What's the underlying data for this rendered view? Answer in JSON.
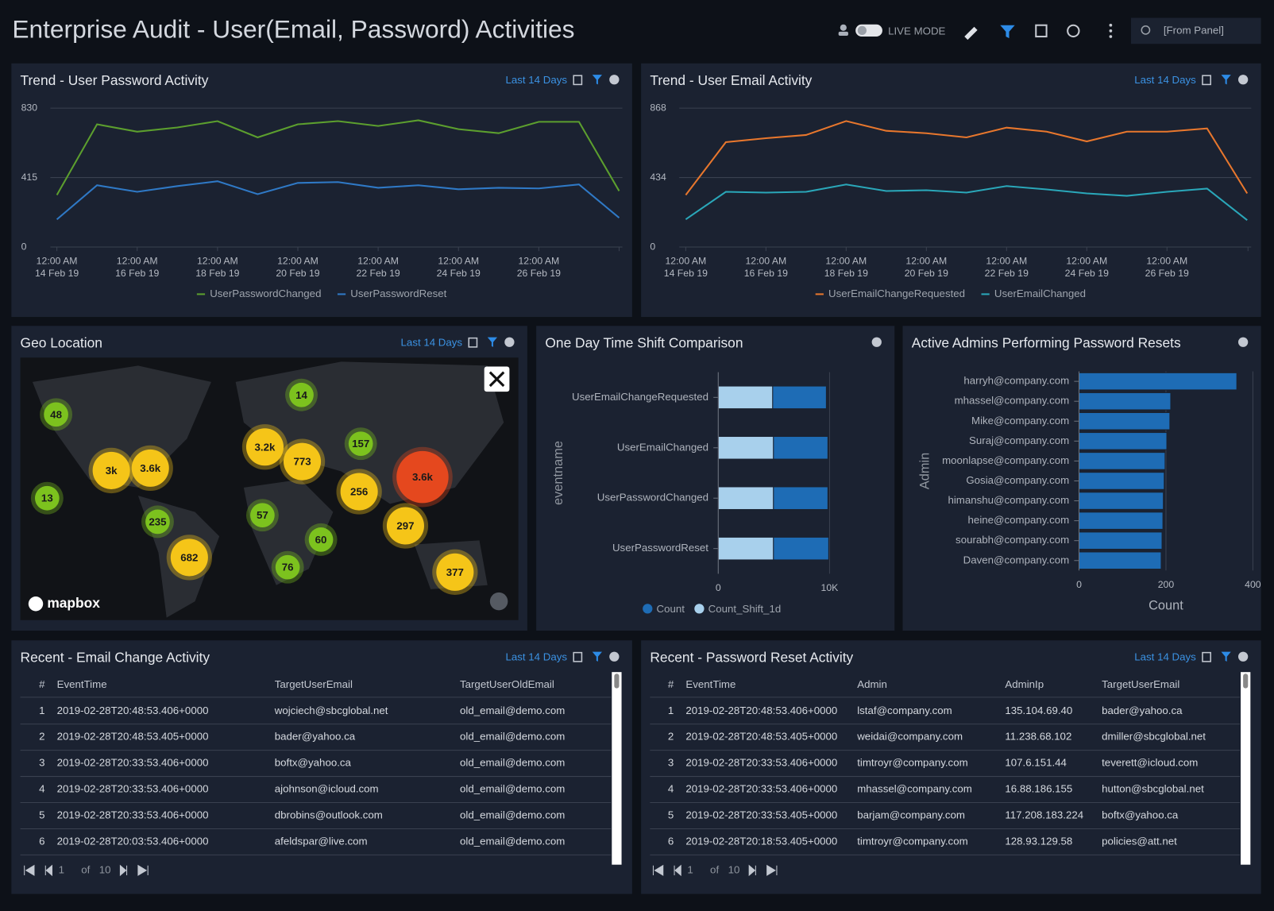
{
  "header": {
    "title": "Enterprise Audit - User(Email, Password) Activities",
    "live_mode": "LIVE MODE",
    "time_range": "[From Panel]"
  },
  "chart_data": [
    {
      "type": "line",
      "title": "Trend - User Password Activity",
      "time_range": "Last 14 Days",
      "x": [
        "14 Feb 19",
        "15 Feb 19",
        "16 Feb 19",
        "17 Feb 19",
        "18 Feb 19",
        "19 Feb 19",
        "20 Feb 19",
        "21 Feb 19",
        "22 Feb 19",
        "23 Feb 19",
        "24 Feb 19",
        "25 Feb 19",
        "26 Feb 19",
        "27 Feb 19",
        "28 Feb 19"
      ],
      "xticks": [
        {
          "value": "14 Feb 19",
          "label": "12:00 AM\n14 Feb 19"
        },
        {
          "value": "16 Feb 19",
          "label": "12:00 AM\n16 Feb 19"
        },
        {
          "value": "18 Feb 19",
          "label": "12:00 AM\n18 Feb 19"
        },
        {
          "value": "20 Feb 19",
          "label": "12:00 AM\n20 Feb 19"
        },
        {
          "value": "22 Feb 19",
          "label": "12:00 AM\n22 Feb 19"
        },
        {
          "value": "24 Feb 19",
          "label": "12:00 AM\n24 Feb 19"
        },
        {
          "value": "26 Feb 19",
          "label": "12:00 AM\n26 Feb 19"
        }
      ],
      "ylim": [
        0,
        830
      ],
      "yticks": [
        0,
        415,
        830
      ],
      "grid": true,
      "series": [
        {
          "name": "UserPasswordChanged",
          "color": "#5c9f2e",
          "values": [
            311,
            733,
            689,
            714,
            752,
            655,
            733,
            752,
            723,
            757,
            704,
            680,
            748,
            748,
            335
          ]
        },
        {
          "name": "UserPasswordReset",
          "color": "#2f79c6",
          "values": [
            165,
            369,
            330,
            364,
            393,
            316,
            383,
            388,
            354,
            369,
            345,
            354,
            350,
            374,
            175
          ]
        }
      ]
    },
    {
      "type": "line",
      "title": "Trend - User Email Activity",
      "time_range": "Last 14 Days",
      "x": [
        "14 Feb 19",
        "15 Feb 19",
        "16 Feb 19",
        "17 Feb 19",
        "18 Feb 19",
        "19 Feb 19",
        "20 Feb 19",
        "21 Feb 19",
        "22 Feb 19",
        "23 Feb 19",
        "24 Feb 19",
        "25 Feb 19",
        "26 Feb 19",
        "27 Feb 19",
        "28 Feb 19"
      ],
      "xticks": [
        {
          "value": "14 Feb 19",
          "label": "12:00 AM\n14 Feb 19"
        },
        {
          "value": "16 Feb 19",
          "label": "12:00 AM\n16 Feb 19"
        },
        {
          "value": "18 Feb 19",
          "label": "12:00 AM\n18 Feb 19"
        },
        {
          "value": "20 Feb 19",
          "label": "12:00 AM\n20 Feb 19"
        },
        {
          "value": "22 Feb 19",
          "label": "12:00 AM\n22 Feb 19"
        },
        {
          "value": "24 Feb 19",
          "label": "12:00 AM\n24 Feb 19"
        },
        {
          "value": "26 Feb 19",
          "label": "12:00 AM\n26 Feb 19"
        }
      ],
      "ylim": [
        0,
        868
      ],
      "yticks": [
        0,
        434,
        868
      ],
      "grid": true,
      "series": [
        {
          "name": "UserEmailChangeRequested",
          "color": "#e8772d",
          "values": [
            325,
            655,
            680,
            700,
            787,
            726,
            711,
            685,
            746,
            721,
            660,
            721,
            721,
            741,
            335
          ]
        },
        {
          "name": "UserEmailChanged",
          "color": "#2aa7b9",
          "values": [
            173,
            345,
            340,
            345,
            391,
            350,
            355,
            340,
            381,
            360,
            335,
            320,
            345,
            365,
            168
          ]
        }
      ]
    },
    {
      "type": "hbar",
      "title": "One Day Time Shift Comparison",
      "y_label": "eventname",
      "categories": [
        "UserEmailChangeRequested",
        "UserEmailChanged",
        "UserPasswordChanged",
        "UserPasswordReset"
      ],
      "xlim": [
        0,
        10000
      ],
      "xticks": [
        0,
        {
          "value": 10000,
          "label": "10K"
        }
      ],
      "grid": true,
      "series": [
        {
          "name": "Count",
          "color": "#1e6cb5",
          "values": [
            4820,
            4890,
            4890,
            4960
          ]
        },
        {
          "name": "Count_Shift_1d",
          "color": "#a8d0ec",
          "values": [
            4890,
            4960,
            4960,
            4960
          ]
        }
      ]
    },
    {
      "type": "hbar",
      "title": "Active Admins Performing Password Resets",
      "y_label": "Admin",
      "x_label": "Count",
      "categories": [
        "harryh@company.com",
        "mhassel@company.com",
        "Mike@company.com",
        "Suraj@company.com",
        "moonlapse@company.com",
        "Gosia@company.com",
        "himanshu@company.com",
        "heine@company.com",
        "sourabh@company.com",
        "Daven@company.com"
      ],
      "values": [
        363,
        211,
        209,
        202,
        198,
        196,
        194,
        193,
        191,
        189
      ],
      "color": "#1e6cb5",
      "xlim": [
        0,
        400
      ],
      "xticks": [
        0,
        200,
        400
      ],
      "grid": true
    }
  ],
  "map": {
    "title": "Geo Location",
    "time_range": "Last 14 Days",
    "brand": "mapbox",
    "clusters": [
      {
        "label": "48",
        "color": "#7cc21e"
      },
      {
        "label": "14",
        "color": "#7cc21e"
      },
      {
        "label": "157",
        "color": "#7cc21e"
      },
      {
        "label": "3.2k",
        "color": "#f5c518"
      },
      {
        "label": "3k",
        "color": "#f5c518"
      },
      {
        "label": "3.6k",
        "color": "#f5c518"
      },
      {
        "label": "773",
        "color": "#f5c518"
      },
      {
        "label": "3.6k",
        "color": "#e5481e"
      },
      {
        "label": "13",
        "color": "#7cc21e"
      },
      {
        "label": "256",
        "color": "#f5c518"
      },
      {
        "label": "235",
        "color": "#7cc21e"
      },
      {
        "label": "57",
        "color": "#7cc21e"
      },
      {
        "label": "297",
        "color": "#f5c518"
      },
      {
        "label": "60",
        "color": "#7cc21e"
      },
      {
        "label": "682",
        "color": "#f5c518"
      },
      {
        "label": "76",
        "color": "#7cc21e"
      },
      {
        "label": "377",
        "color": "#f5c518"
      }
    ]
  },
  "tables": [
    {
      "title": "Recent - Email Change Activity",
      "time_range": "Last 14 Days",
      "columns": [
        "#",
        "EventTime",
        "TargetUserEmail",
        "TargetUserOldEmail"
      ],
      "rows": [
        [
          "1",
          "2019-02-28T20:48:53.406+0000",
          "wojciech@sbcglobal.net",
          "old_email@demo.com"
        ],
        [
          "2",
          "2019-02-28T20:48:53.405+0000",
          "bader@yahoo.ca",
          "old_email@demo.com"
        ],
        [
          "3",
          "2019-02-28T20:33:53.406+0000",
          "boftx@yahoo.ca",
          "old_email@demo.com"
        ],
        [
          "4",
          "2019-02-28T20:33:53.406+0000",
          "ajohnson@icloud.com",
          "old_email@demo.com"
        ],
        [
          "5",
          "2019-02-28T20:33:53.406+0000",
          "dbrobins@outlook.com",
          "old_email@demo.com"
        ],
        [
          "6",
          "2019-02-28T20:03:53.406+0000",
          "afeldspar@live.com",
          "old_email@demo.com"
        ]
      ],
      "pagination": {
        "page": "1",
        "of": "of",
        "total": "10"
      }
    },
    {
      "title": "Recent - Password Reset Activity",
      "time_range": "Last 14 Days",
      "columns": [
        "#",
        "EventTime",
        "Admin",
        "AdminIp",
        "TargetUserEmail"
      ],
      "rows": [
        [
          "1",
          "2019-02-28T20:48:53.406+0000",
          "lstaf@company.com",
          "135.104.69.40",
          "bader@yahoo.ca"
        ],
        [
          "2",
          "2019-02-28T20:48:53.405+0000",
          "weidai@company.com",
          "11.238.68.102",
          "dmiller@sbcglobal.net"
        ],
        [
          "3",
          "2019-02-28T20:33:53.406+0000",
          "timtroyr@company.com",
          "107.6.151.44",
          "teverett@icloud.com"
        ],
        [
          "4",
          "2019-02-28T20:33:53.406+0000",
          "mhassel@company.com",
          "16.88.186.155",
          "hutton@sbcglobal.net"
        ],
        [
          "5",
          "2019-02-28T20:33:53.405+0000",
          "barjam@company.com",
          "117.208.183.224",
          "boftx@yahoo.ca"
        ],
        [
          "6",
          "2019-02-28T20:18:53.405+0000",
          "timtroyr@company.com",
          "128.93.129.58",
          "policies@att.net"
        ]
      ],
      "pagination": {
        "page": "1",
        "of": "of",
        "total": "10"
      }
    }
  ]
}
